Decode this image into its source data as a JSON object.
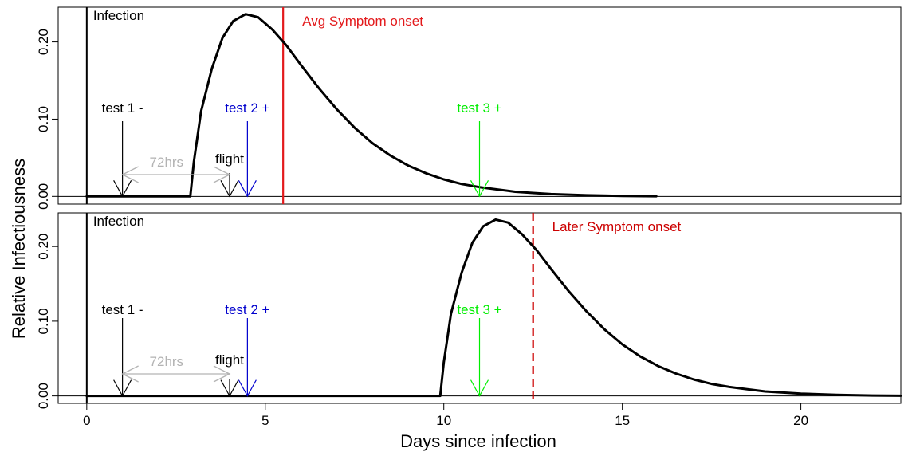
{
  "chart_data": {
    "type": "line",
    "xlabel": "Days since infection",
    "ylabel": "Relative Infectiousness",
    "xlim": [
      -0.8,
      22.8
    ],
    "x_ticks": [
      "0",
      "5",
      "10",
      "15",
      "20"
    ],
    "panels": [
      {
        "ylim": [
          -0.01,
          0.245
        ],
        "y_ticks": [
          "0.00",
          "0.10",
          "0.20"
        ],
        "infection_day": 0,
        "infection_label": "Infection",
        "symptom_onset": {
          "day": 5.5,
          "label": "Avg Symptom onset",
          "style": "solid",
          "color": "#e31a1c"
        },
        "curve": {
          "start": 2.9,
          "end": 15.95,
          "peak_day": 4.45,
          "peak_value": 0.236
        },
        "series": [
          {
            "x": [
              0,
              2.9,
              3.0,
              3.2,
              3.5,
              3.8,
              4.1,
              4.45,
              4.8,
              5.2,
              5.6,
              6.0,
              6.5,
              7.0,
              7.5,
              8.0,
              8.5,
              9.0,
              9.5,
              10.0,
              10.5,
              11.0,
              11.5,
              12.0,
              12.5,
              13.0,
              14.0,
              15.0,
              15.95
            ],
            "y": [
              0,
              0,
              0.045,
              0.11,
              0.165,
              0.205,
              0.227,
              0.236,
              0.232,
              0.216,
              0.195,
              0.17,
              0.14,
              0.113,
              0.089,
              0.069,
              0.053,
              0.04,
              0.03,
              0.022,
              0.016,
              0.012,
              0.009,
              0.006,
              0.0045,
              0.003,
              0.0015,
              0.0006,
              0.0002
            ]
          }
        ],
        "tests": [
          {
            "label": "test 1 -",
            "day": 1.0,
            "color": "#000000"
          },
          {
            "label": "test 2 +",
            "day": 4.5,
            "color": "#0000cd"
          },
          {
            "label": "test 3 +",
            "day": 11.0,
            "color": "#00ee00"
          }
        ],
        "flight": {
          "label": "flight",
          "day": 4.0
        },
        "window": {
          "label": "72hrs",
          "from": 1.0,
          "to": 4.0,
          "color": "#b3b3b3"
        }
      },
      {
        "ylim": [
          -0.01,
          0.245
        ],
        "y_ticks": [
          "0.00",
          "0.10",
          "0.20"
        ],
        "infection_day": 0,
        "infection_label": "Infection",
        "symptom_onset": {
          "day": 12.5,
          "label": "Later Symptom onset",
          "style": "dashed",
          "color": "#cc0000"
        },
        "curve": {
          "start": 9.9,
          "end": 22.8,
          "peak_day": 11.45,
          "peak_value": 0.236
        },
        "series": [
          {
            "x": [
              0,
              9.9,
              10.0,
              10.2,
              10.5,
              10.8,
              11.1,
              11.45,
              11.8,
              12.2,
              12.6,
              13.0,
              13.5,
              14.0,
              14.5,
              15.0,
              15.5,
              16.0,
              16.5,
              17.0,
              17.5,
              18.0,
              18.5,
              19.0,
              19.5,
              20.0,
              21.0,
              22.0,
              22.8
            ],
            "y": [
              0,
              0,
              0.045,
              0.11,
              0.165,
              0.205,
              0.227,
              0.236,
              0.232,
              0.216,
              0.195,
              0.17,
              0.14,
              0.113,
              0.089,
              0.069,
              0.053,
              0.04,
              0.03,
              0.022,
              0.016,
              0.012,
              0.009,
              0.006,
              0.0045,
              0.003,
              0.0015,
              0.0006,
              0.0002
            ]
          }
        ],
        "tests": [
          {
            "label": "test 1 -",
            "day": 1.0,
            "color": "#000000"
          },
          {
            "label": "test 2 +",
            "day": 4.5,
            "color": "#0000cd"
          },
          {
            "label": "test 3 +",
            "day": 11.0,
            "color": "#00ee00"
          }
        ],
        "flight": {
          "label": "flight",
          "day": 4.0
        },
        "window": {
          "label": "72hrs",
          "from": 1.0,
          "to": 4.0,
          "color": "#b3b3b3"
        }
      }
    ]
  }
}
